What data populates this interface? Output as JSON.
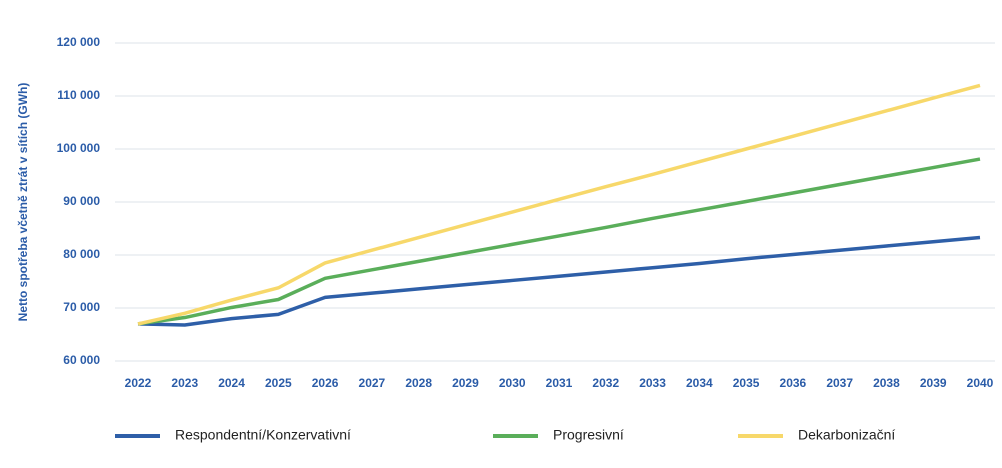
{
  "chart_data": {
    "type": "line",
    "y_label": "Netto spotřeba včetně ztrát v sítích (GWh)",
    "categories": [
      "2022",
      "2023",
      "2024",
      "2025",
      "2026",
      "2027",
      "2028",
      "2029",
      "2030",
      "2031",
      "2032",
      "2033",
      "2034",
      "2035",
      "2036",
      "2037",
      "2038",
      "2039",
      "2040"
    ],
    "series": [
      {
        "name": "Respondentní/Konzervativní",
        "color": "#2e5fa8",
        "values": [
          67000,
          66800,
          68000,
          68800,
          72000,
          72800,
          73600,
          74400,
          75200,
          76000,
          76800,
          77600,
          78400,
          79300,
          80100,
          80900,
          81700,
          82500,
          83300
        ]
      },
      {
        "name": "Progresivní",
        "color": "#5aae5a",
        "values": [
          67000,
          68200,
          70100,
          71600,
          75600,
          77200,
          78800,
          80400,
          82000,
          83600,
          85200,
          86900,
          88500,
          90100,
          91700,
          93300,
          94900,
          96500,
          98100
        ]
      },
      {
        "name": "Dekarbonizační",
        "color": "#f7d86a",
        "values": [
          67000,
          69000,
          71500,
          73800,
          78500,
          80900,
          83300,
          85700,
          88100,
          90500,
          92900,
          95200,
          97600,
          100000,
          102400,
          104800,
          107200,
          109600,
          112000
        ]
      }
    ],
    "ylim": [
      60000,
      120000
    ],
    "yticks": [
      {
        "value": 60000,
        "label": "60 000"
      },
      {
        "value": 70000,
        "label": "70 000"
      },
      {
        "value": 80000,
        "label": "80 000"
      },
      {
        "value": 90000,
        "label": "90 000"
      },
      {
        "value": 100000,
        "label": "100 000"
      },
      {
        "value": 110000,
        "label": "110 000"
      },
      {
        "value": 120000,
        "label": "120 000"
      }
    ],
    "grid": true
  }
}
